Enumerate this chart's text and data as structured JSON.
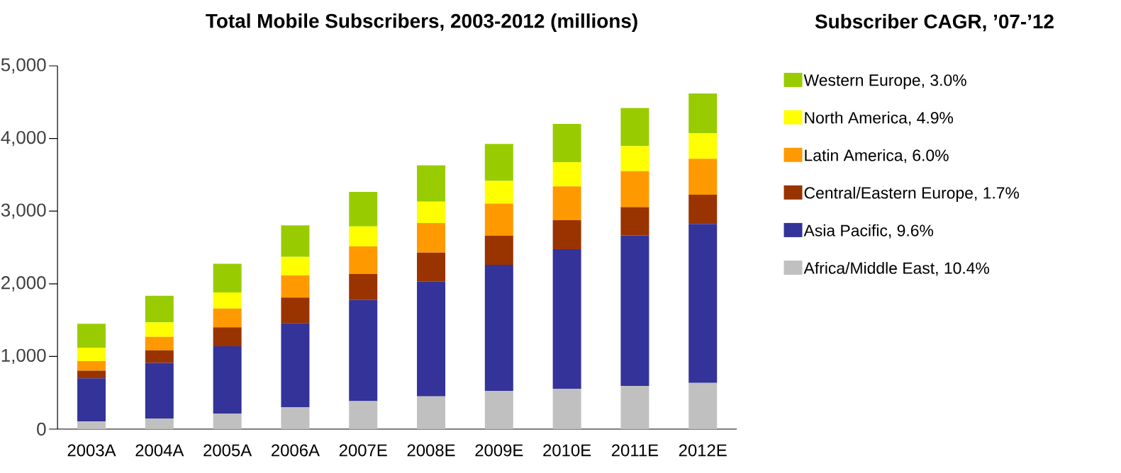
{
  "chart_data": {
    "type": "bar",
    "stacked": true,
    "title": "Total Mobile Subscribers, 2003-2012 (millions)",
    "legend_title": "Subscriber CAGR, ’07-’12",
    "categories": [
      "2003A",
      "2004A",
      "2005A",
      "2006A",
      "2007E",
      "2008E",
      "2009E",
      "2010E",
      "2011E",
      "2012E"
    ],
    "series": [
      {
        "name": "Africa/Middle East, 10.4%",
        "color": "#c0c0c0",
        "values": [
          105,
          145,
          215,
          300,
          385,
          450,
          525,
          555,
          595,
          635
        ]
      },
      {
        "name": "Asia Pacific, 9.6%",
        "color": "#333399",
        "values": [
          595,
          765,
          925,
          1160,
          1390,
          1580,
          1735,
          1920,
          2070,
          2190
        ]
      },
      {
        "name": "Central/Eastern Europe, 1.7%",
        "color": "#993300",
        "values": [
          105,
          175,
          260,
          350,
          360,
          400,
          400,
          400,
          390,
          400
        ]
      },
      {
        "name": "Latin America, 6.0%",
        "color": "#ff9900",
        "values": [
          130,
          185,
          260,
          305,
          380,
          405,
          445,
          465,
          495,
          495
        ]
      },
      {
        "name": "North America, 4.9%",
        "color": "#ffff00",
        "values": [
          185,
          200,
          220,
          255,
          275,
          295,
          310,
          335,
          345,
          355
        ]
      },
      {
        "name": "Western Europe, 3.0%",
        "color": "#99cc00",
        "values": [
          330,
          365,
          395,
          435,
          475,
          500,
          510,
          525,
          525,
          545
        ]
      }
    ],
    "ylim": [
      0,
      5000
    ],
    "yticks": [
      0,
      {
        "value": 1000,
        "label": "1,000"
      },
      {
        "value": 2000,
        "label": "2,000"
      },
      {
        "value": 3000,
        "label": "3,000"
      },
      {
        "value": 4000,
        "label": "4,000"
      },
      {
        "value": 5000,
        "label": "5,000"
      }
    ],
    "grid": false,
    "legend": "right"
  }
}
